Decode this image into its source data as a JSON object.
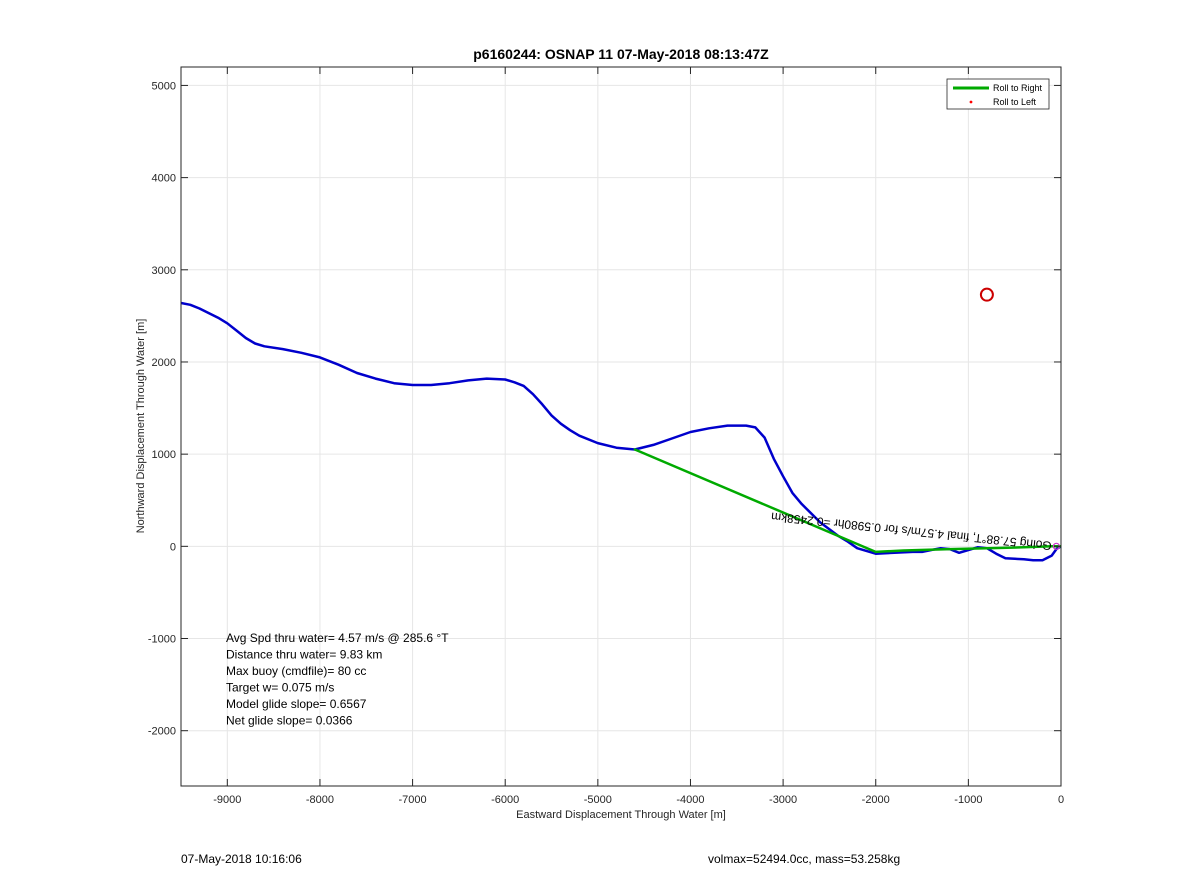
{
  "footer": {
    "timestamp": "07-May-2018 10:16:06",
    "vol_mass": "volmax=52494.0cc, mass=53.258kg"
  },
  "chart_data": {
    "type": "line",
    "title": "p6160244: OSNAP 11 07-May-2018 08:13:47Z",
    "xlabel": "Eastward Displacement Through Water [m]",
    "ylabel": "Northward Displacement Through Water [m]",
    "xlim": [
      -9500,
      0
    ],
    "ylim": [
      -2600,
      5200
    ],
    "xticks": [
      -9000,
      -8000,
      -7000,
      -6000,
      -5000,
      -4000,
      -3000,
      -2000,
      -1000,
      0
    ],
    "yticks": [
      -2000,
      -1000,
      0,
      1000,
      2000,
      3000,
      4000,
      5000
    ],
    "grid": true,
    "legend": {
      "placement": "top-right",
      "entries": [
        {
          "label": "Roll to Right",
          "color": "#00aa00",
          "style": "line"
        },
        {
          "label": "Roll to Left",
          "color": "#ff0000",
          "style": "dot"
        }
      ]
    },
    "series": [
      {
        "color": "#0000cc",
        "x": [
          -9500,
          -9400,
          -9300,
          -9200,
          -9100,
          -9000,
          -8900,
          -8800,
          -8700,
          -8600,
          -8400,
          -8200,
          -8000,
          -7800,
          -7600,
          -7400,
          -7200,
          -7000,
          -6800,
          -6600,
          -6400,
          -6200,
          -6000,
          -5900,
          -5800,
          -5700,
          -5600,
          -5500,
          -5400,
          -5300,
          -5200,
          -5000,
          -4800,
          -4600,
          -4400,
          -4200,
          -4000,
          -3800,
          -3600,
          -3400,
          -3300,
          -3200,
          -3100,
          -3000,
          -2900,
          -2800,
          -2600,
          -2400,
          -2300,
          -2200,
          -2000,
          -1800,
          -1600,
          -1500,
          -1400,
          -1300,
          -1200,
          -1100,
          -1000,
          -900,
          -800,
          -700,
          -600,
          -400,
          -300,
          -200,
          -100,
          -50,
          0
        ],
        "y": [
          2640,
          2620,
          2580,
          2530,
          2480,
          2420,
          2340,
          2260,
          2200,
          2170,
          2140,
          2100,
          2050,
          1970,
          1880,
          1820,
          1770,
          1750,
          1750,
          1770,
          1800,
          1820,
          1810,
          1780,
          1740,
          1650,
          1540,
          1420,
          1330,
          1260,
          1200,
          1120,
          1070,
          1050,
          1100,
          1170,
          1240,
          1280,
          1310,
          1310,
          1290,
          1180,
          950,
          760,
          580,
          460,
          260,
          110,
          50,
          -20,
          -80,
          -70,
          -60,
          -60,
          -40,
          -20,
          -30,
          -70,
          -40,
          -10,
          -20,
          -80,
          -130,
          -140,
          -150,
          -150,
          -100,
          -30,
          0
        ]
      },
      {
        "color": "#00aa00",
        "x": [
          -4600,
          -2000,
          -1700,
          -1200,
          -800,
          -400,
          -100,
          0
        ],
        "y": [
          1050,
          -60,
          -45,
          -30,
          -20,
          -10,
          0,
          0
        ]
      }
    ],
    "markers": [
      {
        "type": "circle",
        "color": "#cc0000",
        "x": -800,
        "y": 2730
      }
    ],
    "annotations": {
      "rotated": "Going 57.88°T, final 4.57m/s for 0.5980hr =0.2458km",
      "stats": [
        "Avg Spd thru water=  4.57 m/s @ 285.6 °T",
        "Distance thru water=  9.83 km",
        "Max buoy (cmdfile)= 80 cc",
        "Target w= 0.075 m/s",
        "Model glide slope= 0.6567",
        "Net glide slope= 0.0366"
      ]
    }
  }
}
